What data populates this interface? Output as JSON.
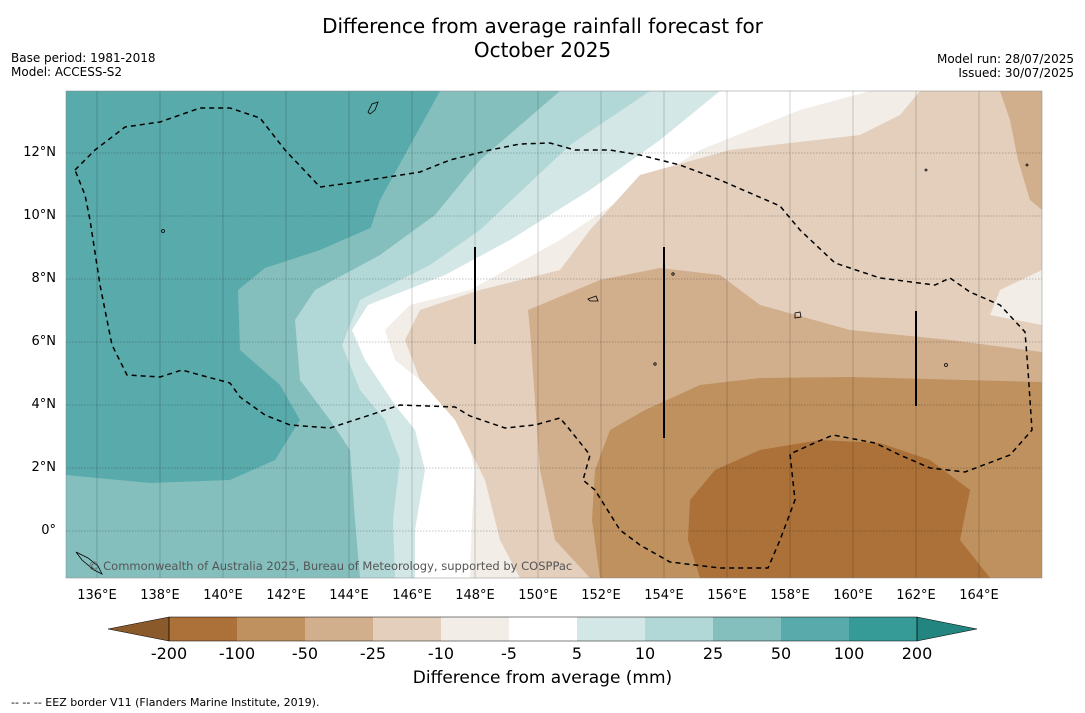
{
  "header": {
    "title_line1": "Difference from average rainfall forecast for",
    "title_line2": "October 2025",
    "base_period": "Base period: 1981-2018",
    "model": "Model: ACCESS-S2",
    "model_run": "Model run: 28/07/2025",
    "issued": "Issued: 30/07/2025"
  },
  "map": {
    "lat_labels": [
      "12°N",
      "10°N",
      "8°N",
      "6°N",
      "4°N",
      "2°N",
      "0°"
    ],
    "lon_labels": [
      "136°E",
      "138°E",
      "140°E",
      "142°E",
      "144°E",
      "146°E",
      "148°E",
      "150°E",
      "152°E",
      "154°E",
      "156°E",
      "158°E",
      "160°E",
      "162°E",
      "164°E"
    ],
    "copyright": "© Commonwealth of Australia 2025, Bureau of Meteorology, supported by COSPPac",
    "region_pattern": "mostly drier than average east of 150°E, wetter than average to the west"
  },
  "colorbar": {
    "title": "Difference from average (mm)",
    "tick_labels": [
      "-200",
      "-100",
      "-50",
      "-25",
      "-10",
      "-5",
      "5",
      "10",
      "25",
      "50",
      "100",
      "200"
    ],
    "colors": [
      "#8b5a2b",
      "#ab7138",
      "#be915f",
      "#d1ae8c",
      "#e3cfbc",
      "#f2ede7",
      "#ffffff",
      "#d3e7e6",
      "#b1d8d7",
      "#84bfbe",
      "#59aaab",
      "#369a97",
      "#23857f"
    ]
  },
  "footnote": "--  --  -- EEZ border V11 (Flanders Marine Institute, 2019)."
}
